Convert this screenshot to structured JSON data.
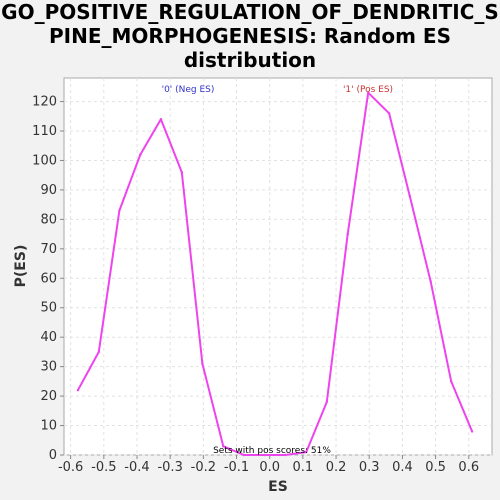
{
  "chart_data": {
    "type": "line",
    "title": "GO_POSITIVE_REGULATION_OF_DENDRITIC_SPINE_MORPHOGENESIS: Random ES distribution",
    "title_line1": "GO_POSITIVE_REGULATION_OF_DENDRITIC_S",
    "title_line2": "PINE_MORPHOGENESIS: Random ES",
    "title_line3": "distribution",
    "xlabel": "ES",
    "ylabel": "P(ES)",
    "xlim": [
      -0.62,
      0.67
    ],
    "ylim": [
      0,
      128
    ],
    "xticks": [
      -0.6,
      -0.5,
      -0.4,
      -0.3,
      -0.2,
      -0.1,
      0.0,
      0.1,
      0.2,
      0.3,
      0.4,
      0.5,
      0.6
    ],
    "xtick_labels": [
      "-0.6",
      "-0.5",
      "-0.4",
      "-0.3",
      "-0.2",
      "-0.1",
      "0.0",
      "0.1",
      "0.2",
      "0.3",
      "0.4",
      "0.5",
      "0.6"
    ],
    "yticks": [
      0,
      10,
      20,
      30,
      40,
      50,
      60,
      70,
      80,
      90,
      100,
      110,
      120
    ],
    "ytick_labels": [
      "0",
      "10",
      "20",
      "30",
      "40",
      "50",
      "60",
      "70",
      "80",
      "90",
      "100",
      "110",
      "120"
    ],
    "grid": true,
    "series": [
      {
        "color": "#ee44ee",
        "x": [
          -0.578,
          -0.515,
          -0.453,
          -0.39,
          -0.328,
          -0.265,
          -0.203,
          -0.14,
          -0.078,
          -0.015,
          0.047,
          0.11,
          0.172,
          0.235,
          0.297,
          0.36,
          0.422,
          0.485,
          0.547,
          0.61
        ],
        "y": [
          22,
          35,
          83,
          102,
          114,
          96,
          31,
          3,
          0,
          0,
          0,
          1,
          18,
          75,
          123,
          116,
          88,
          59,
          25,
          8
        ]
      }
    ],
    "annotations": {
      "neg": {
        "text": "'0' (Neg ES)",
        "color": "#3333cc"
      },
      "pos": {
        "text": "'1' (Pos ES)",
        "color": "#cc3333"
      },
      "sets": {
        "text": "Sets with pos scores: 51%",
        "color": "#000000"
      }
    }
  }
}
